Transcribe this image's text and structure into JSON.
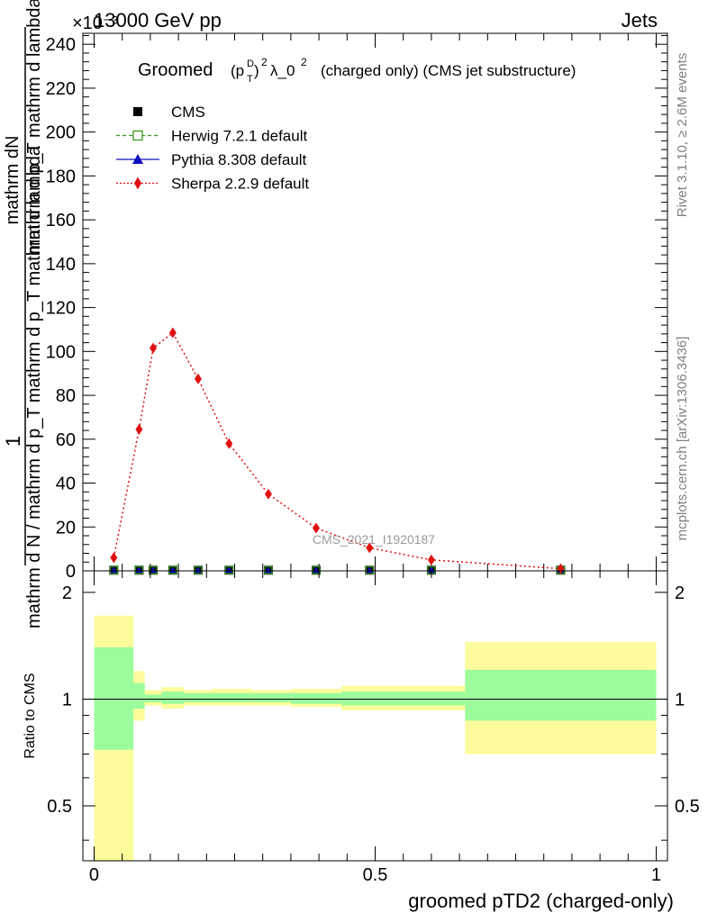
{
  "header": {
    "left": "13000 GeV pp",
    "right": "Jets",
    "exponent": "×10⁻³"
  },
  "side": {
    "rivet": "Rivet 3.1.10, ≥ 2.6M events",
    "mcplots": "mcplots.cern.ch [arXiv:1306.3436]"
  },
  "title": {
    "prefix": "Groomed",
    "formula": "(p_T^D)^2 λ_0^2",
    "suffix": "(charged only) (CMS jet substructure)"
  },
  "watermark": "CMS_2021_I1920187",
  "ylabel_main": {
    "numerator_top": "mathrm dN",
    "numerator_bottom": "mathrm d p_T mathrm d lambda",
    "denominator": "mathrm d N / mathrm d p_T mathrm d p_T mathrm d lambda",
    "prefix": "1"
  },
  "ylabel_ratio": "Ratio to CMS",
  "xlabel": "groomed pTD2 (charged-only)",
  "legend": [
    {
      "label": "CMS",
      "color": "#000000",
      "marker": "square",
      "line": "none"
    },
    {
      "label": "Herwig 7.2.1 default",
      "color": "#3a9a1a",
      "marker": "open-square",
      "line": "dashed"
    },
    {
      "label": "Pythia 8.308 default",
      "color": "#1010c0",
      "marker": "triangle",
      "line": "solid"
    },
    {
      "label": "Sherpa 2.2.9 default",
      "color": "#e01010",
      "marker": "diamond",
      "line": "dotted"
    }
  ],
  "chart_data": [
    {
      "type": "line",
      "panel": "main",
      "xlim": [
        -0.02,
        1.02
      ],
      "ylim": [
        0,
        245
      ],
      "y_multiplier": "1e-3",
      "yticks": [
        0,
        20,
        40,
        60,
        80,
        100,
        120,
        140,
        160,
        180,
        200,
        220,
        240
      ],
      "xticks": [
        0,
        0.5,
        1
      ],
      "series": [
        {
          "name": "CMS",
          "x": [
            0.035,
            0.08,
            0.105,
            0.14,
            0.185,
            0.24,
            0.31,
            0.395,
            0.49,
            0.6,
            0.83
          ],
          "y": [
            0.3,
            0.3,
            0.3,
            0.3,
            0.3,
            0.3,
            0.3,
            0.3,
            0.3,
            0.3,
            0.3
          ]
        },
        {
          "name": "Herwig 7.2.1 default",
          "x": [
            0.035,
            0.08,
            0.105,
            0.14,
            0.185,
            0.24,
            0.31,
            0.395,
            0.49,
            0.6,
            0.83
          ],
          "y": [
            0.3,
            0.3,
            0.3,
            0.3,
            0.3,
            0.3,
            0.3,
            0.3,
            0.3,
            0.3,
            0.3
          ]
        },
        {
          "name": "Pythia 8.308 default",
          "x": [
            0.035,
            0.08,
            0.105,
            0.14,
            0.185,
            0.24,
            0.31,
            0.395,
            0.49,
            0.6,
            0.83
          ],
          "y": [
            0.3,
            0.3,
            0.3,
            0.3,
            0.3,
            0.3,
            0.3,
            0.3,
            0.3,
            0.3,
            0.3
          ]
        },
        {
          "name": "Sherpa 2.2.9 default",
          "x": [
            0.035,
            0.08,
            0.105,
            0.14,
            0.185,
            0.24,
            0.31,
            0.395,
            0.49,
            0.6,
            0.83
          ],
          "y": [
            6,
            64.5,
            101.5,
            108.5,
            87.5,
            58,
            35,
            19.5,
            10.5,
            5,
            1
          ]
        }
      ]
    },
    {
      "type": "area",
      "panel": "ratio",
      "xlim": [
        -0.02,
        1.02
      ],
      "ylim": [
        0.35,
        2.3
      ],
      "ylabel": "Ratio to CMS",
      "xlabel": "groomed pTD2 (charged-only)",
      "yticks": [
        0.5,
        1,
        2
      ],
      "xticks": [
        0,
        0.5,
        1
      ],
      "reference_line": 1,
      "bins": [
        {
          "x": [
            0.0,
            0.07
          ],
          "inner": [
            0.72,
            1.4
          ],
          "outer": [
            0.0,
            1.72
          ]
        },
        {
          "x": [
            0.07,
            0.09
          ],
          "inner": [
            0.94,
            1.11
          ],
          "outer": [
            0.87,
            1.2
          ]
        },
        {
          "x": [
            0.09,
            0.12
          ],
          "inner": [
            0.98,
            1.03
          ],
          "outer": [
            0.96,
            1.06
          ]
        },
        {
          "x": [
            0.12,
            0.16
          ],
          "inner": [
            0.97,
            1.05
          ],
          "outer": [
            0.94,
            1.08
          ]
        },
        {
          "x": [
            0.16,
            0.21
          ],
          "inner": [
            0.98,
            1.04
          ],
          "outer": [
            0.96,
            1.06
          ]
        },
        {
          "x": [
            0.21,
            0.28
          ],
          "inner": [
            0.98,
            1.04
          ],
          "outer": [
            0.96,
            1.07
          ]
        },
        {
          "x": [
            0.28,
            0.35
          ],
          "inner": [
            0.98,
            1.04
          ],
          "outer": [
            0.96,
            1.06
          ]
        },
        {
          "x": [
            0.35,
            0.44
          ],
          "inner": [
            0.97,
            1.04
          ],
          "outer": [
            0.95,
            1.07
          ]
        },
        {
          "x": [
            0.44,
            0.66
          ],
          "inner": [
            0.96,
            1.05
          ],
          "outer": [
            0.93,
            1.09
          ]
        },
        {
          "x": [
            0.66,
            1.0
          ],
          "inner": [
            0.87,
            1.21
          ],
          "outer": [
            0.7,
            1.45
          ]
        }
      ],
      "band_colors": {
        "inner": "#9cfc9c",
        "outer": "#fcfc9c"
      }
    }
  ]
}
